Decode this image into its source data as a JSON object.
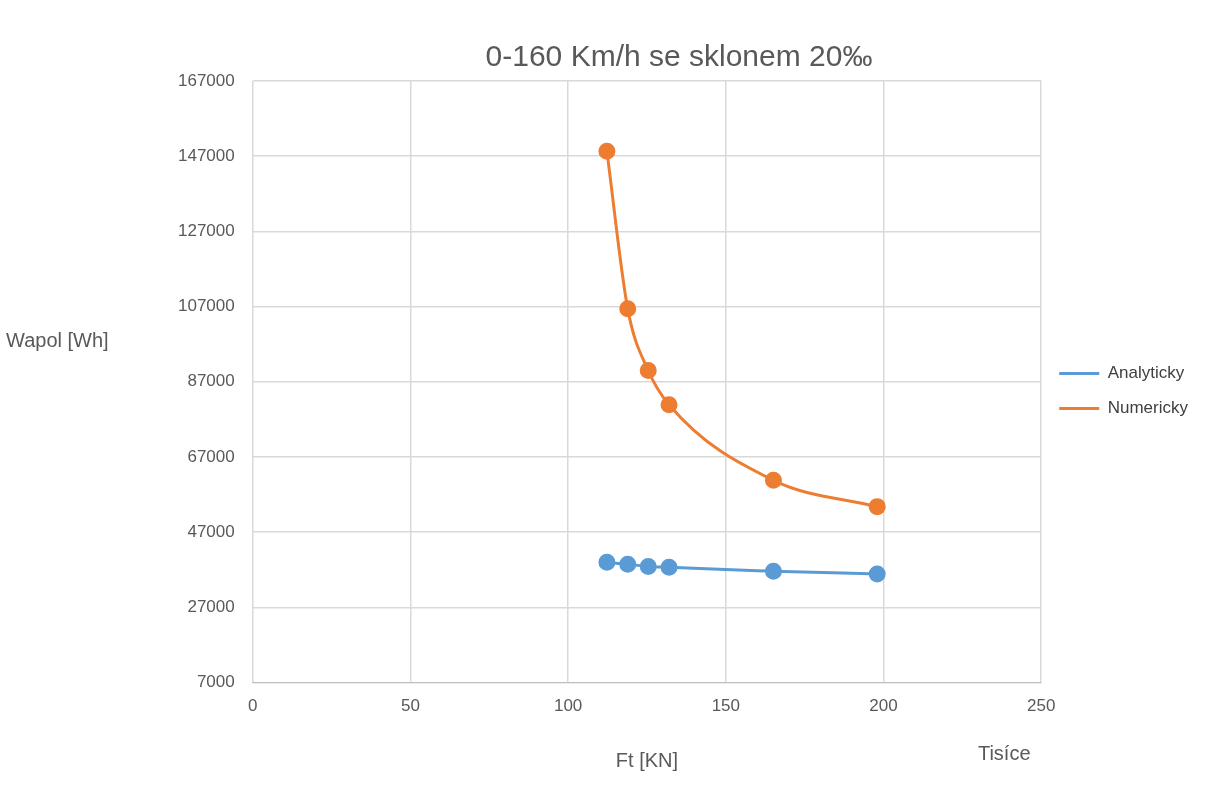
{
  "chart_data": {
    "type": "line",
    "title": "0-160 Km/h se sklonem 20‰",
    "xlabel": "Ft [KN]",
    "ylabel": "Wapol [Wh]",
    "annotations": [
      "Tisíce"
    ],
    "x": [
      112.3,
      118.9,
      125.4,
      132.0,
      165.1,
      198.0
    ],
    "series": [
      {
        "name": "Analyticky",
        "color": "#5b9bd5",
        "values": [
          39000,
          38500,
          37900,
          37700,
          36600,
          35900
        ]
      },
      {
        "name": "Numericky",
        "color": "#ed7d31",
        "values": [
          148300,
          106400,
          90000,
          80900,
          60800,
          53800
        ]
      }
    ],
    "xlim": [
      0,
      250
    ],
    "xticks": [
      0,
      50,
      100,
      150,
      200,
      250
    ],
    "ylim": [
      7000,
      167000
    ],
    "yticks": [
      7000,
      27000,
      47000,
      67000,
      87000,
      107000,
      127000,
      147000,
      167000
    ],
    "grid": true,
    "legend": "right",
    "marker": "circle",
    "line_style": "solid"
  }
}
